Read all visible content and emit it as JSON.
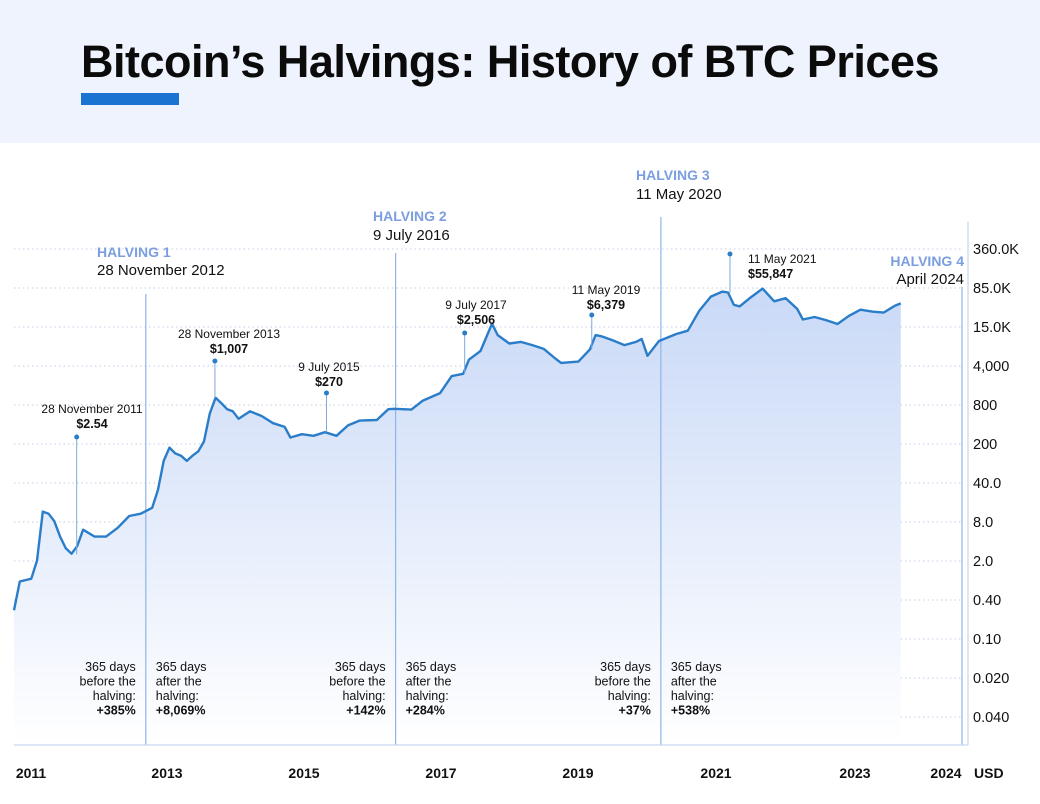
{
  "title": "Bitcoin’s Halvings: History of BTC Prices",
  "colors": {
    "header_bg": "#eef3fd",
    "accent": "#1a73d0",
    "line": "#2a7dc9",
    "halving_label": "#7b9ee0",
    "area_top": "#c9d9f7",
    "area_bottom": "#ffffff"
  },
  "chart_data": {
    "type": "area",
    "title": "Bitcoin’s Halvings: History of BTC Prices",
    "xlabel": "",
    "ylabel": "USD",
    "x_ticks": [
      "2011",
      "2013",
      "2015",
      "2017",
      "2019",
      "2021",
      "2023",
      "2024"
    ],
    "y_ticks": [
      "360.0K",
      "85.0K",
      "15.0K",
      "4,000",
      "800",
      "200",
      "40.0",
      "8.0",
      "2.0",
      "0.40",
      "0.10",
      "0.020",
      "0.040"
    ],
    "y_scale": "log",
    "grid": "horizontal dotted",
    "series": [
      {
        "values": [
          [
            "2011-01",
            0.3
          ],
          [
            "2011-02",
            0.9
          ],
          [
            "2011-04",
            1.0
          ],
          [
            "2011-05",
            2.0
          ],
          [
            "2011-06",
            13
          ],
          [
            "2011-07",
            12
          ],
          [
            "2011-08",
            9
          ],
          [
            "2011-09",
            5
          ],
          [
            "2011-10",
            3.2
          ],
          [
            "2011-11",
            2.6
          ],
          [
            "2011-12",
            3.5
          ],
          [
            "2012-01",
            6.5
          ],
          [
            "2012-03",
            5
          ],
          [
            "2012-05",
            5
          ],
          [
            "2012-07",
            7
          ],
          [
            "2012-09",
            11
          ],
          [
            "2012-11",
            12
          ],
          [
            "2013-01",
            15
          ],
          [
            "2013-02",
            30
          ],
          [
            "2013-03",
            90
          ],
          [
            "2013-04",
            150
          ],
          [
            "2013-05",
            120
          ],
          [
            "2013-06",
            110
          ],
          [
            "2013-07",
            90
          ],
          [
            "2013-08",
            110
          ],
          [
            "2013-09",
            130
          ],
          [
            "2013-10",
            190
          ],
          [
            "2013-11",
            550
          ],
          [
            "2013-12",
            1007
          ],
          [
            "2014-01",
            820
          ],
          [
            "2014-02",
            650
          ],
          [
            "2014-03",
            600
          ],
          [
            "2014-04",
            450
          ],
          [
            "2014-06",
            600
          ],
          [
            "2014-08",
            500
          ],
          [
            "2014-10",
            380
          ],
          [
            "2014-12",
            330
          ],
          [
            "2015-01",
            220
          ],
          [
            "2015-03",
            250
          ],
          [
            "2015-05",
            235
          ],
          [
            "2015-07",
            270
          ],
          [
            "2015-09",
            235
          ],
          [
            "2015-11",
            350
          ],
          [
            "2016-01",
            420
          ],
          [
            "2016-04",
            430
          ],
          [
            "2016-06",
            650
          ],
          [
            "2016-07",
            660
          ],
          [
            "2016-10",
            640
          ],
          [
            "2016-12",
            900
          ],
          [
            "2017-03",
            1200
          ],
          [
            "2017-05",
            2300
          ],
          [
            "2017-07",
            2506
          ],
          [
            "2017-08",
            4300
          ],
          [
            "2017-10",
            6000
          ],
          [
            "2017-12",
            17000
          ],
          [
            "2018-01",
            11000
          ],
          [
            "2018-03",
            8000
          ],
          [
            "2018-05",
            8500
          ],
          [
            "2018-07",
            7500
          ],
          [
            "2018-09",
            6500
          ],
          [
            "2018-11",
            4500
          ],
          [
            "2018-12",
            3800
          ],
          [
            "2019-03",
            4000
          ],
          [
            "2019-05",
            6379
          ],
          [
            "2019-06",
            11000
          ],
          [
            "2019-07",
            10500
          ],
          [
            "2019-09",
            9000
          ],
          [
            "2019-11",
            7500
          ],
          [
            "2020-01",
            8500
          ],
          [
            "2020-02",
            9500
          ],
          [
            "2020-03",
            5000
          ],
          [
            "2020-05",
            8800
          ],
          [
            "2020-08",
            11500
          ],
          [
            "2020-10",
            13000
          ],
          [
            "2020-12",
            28000
          ],
          [
            "2021-02",
            48000
          ],
          [
            "2021-04",
            58000
          ],
          [
            "2021-05",
            55847
          ],
          [
            "2021-06",
            35000
          ],
          [
            "2021-07",
            33000
          ],
          [
            "2021-09",
            47000
          ],
          [
            "2021-11",
            65000
          ],
          [
            "2022-01",
            40000
          ],
          [
            "2022-03",
            45000
          ],
          [
            "2022-05",
            30000
          ],
          [
            "2022-06",
            20000
          ],
          [
            "2022-08",
            22000
          ],
          [
            "2022-10",
            19500
          ],
          [
            "2022-12",
            16800
          ],
          [
            "2023-02",
            23000
          ],
          [
            "2023-04",
            29000
          ],
          [
            "2023-06",
            27000
          ],
          [
            "2023-08",
            26000
          ],
          [
            "2023-10",
            34000
          ],
          [
            "2023-11",
            37000
          ]
        ]
      }
    ],
    "halvings": [
      {
        "label": "HALVING 1",
        "date": "28 November 2012",
        "x": "2012-11-28"
      },
      {
        "label": "HALVING 2",
        "date": "9 July 2016",
        "x": "2016-07-09"
      },
      {
        "label": "HALVING 3",
        "date": "11 May 2020",
        "x": "2020-05-11"
      },
      {
        "label": "HALVING 4",
        "date": "April 2024",
        "x": "2024-04-01"
      }
    ],
    "annotations": [
      {
        "date": "28 November 2011",
        "price": "$2.54",
        "x": "2011-11-28",
        "y": 2.54
      },
      {
        "date": "28 November 2013",
        "price": "$1,007",
        "x": "2013-11-28",
        "y": 1007
      },
      {
        "date": "9 July 2015",
        "price": "$270",
        "x": "2015-07-09",
        "y": 270
      },
      {
        "date": "9 July 2017",
        "price": "$2,506",
        "x": "2017-07-09",
        "y": 2506
      },
      {
        "date": "11 May 2019",
        "price": "$6,379",
        "x": "2019-05-11",
        "y": 6379
      },
      {
        "date": "11 May 2021",
        "price": "$55,847",
        "x": "2021-05-11",
        "y": 55847
      }
    ],
    "period_changes": [
      {
        "text": [
          "365 days",
          "before the",
          "halving:"
        ],
        "value": "+385%",
        "side": "before",
        "halving": 0
      },
      {
        "text": [
          "365 days",
          "after the",
          "halving:"
        ],
        "value": "+8,069%",
        "side": "after",
        "halving": 0
      },
      {
        "text": [
          "365 days",
          "before the",
          "halving:"
        ],
        "value": "+142%",
        "side": "before",
        "halving": 1
      },
      {
        "text": [
          "365 days",
          "after the",
          "halving:"
        ],
        "value": "+284%",
        "side": "after",
        "halving": 1
      },
      {
        "text": [
          "365 days",
          "before the",
          "halving:"
        ],
        "value": "+37%",
        "side": "before",
        "halving": 2
      },
      {
        "text": [
          "365 days",
          "after the",
          "halving:"
        ],
        "value": "+538%",
        "side": "after",
        "halving": 2
      }
    ]
  }
}
